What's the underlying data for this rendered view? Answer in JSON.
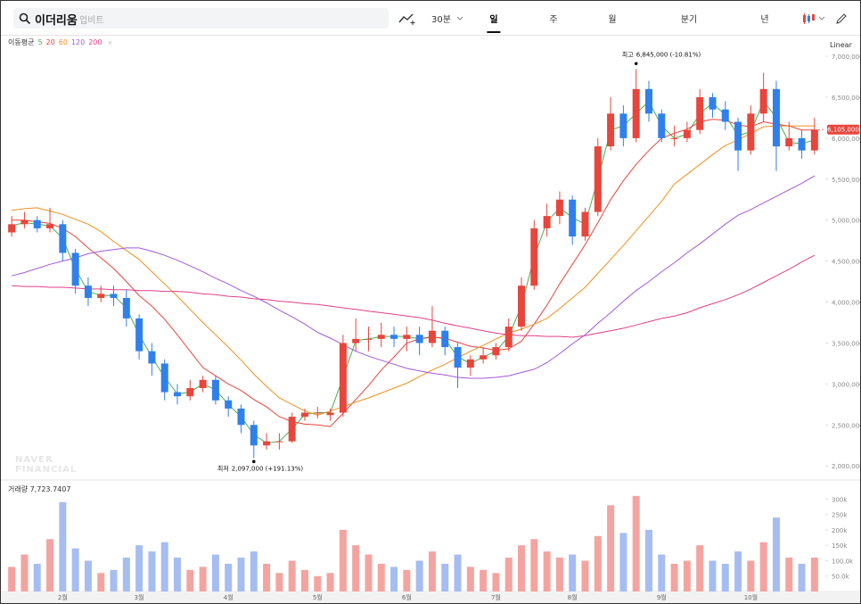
{
  "toolbar": {
    "search": "이더리움",
    "exchange": "업비트",
    "intervals": [
      "30분",
      "일",
      "주",
      "월",
      "분기",
      "년"
    ],
    "active_interval": 1,
    "scale": "Linear"
  },
  "chart_data": {
    "type": "candlestick",
    "watermark": [
      "NAVER",
      "FINANCIAL"
    ],
    "categories": [
      null,
      null,
      null,
      null,
      "2월",
      null,
      null,
      null,
      null,
      null,
      "3월",
      null,
      null,
      null,
      null,
      null,
      null,
      "4월",
      null,
      null,
      null,
      null,
      null,
      null,
      "5월",
      null,
      null,
      null,
      null,
      null,
      null,
      "6월",
      null,
      null,
      null,
      null,
      null,
      null,
      "7월",
      null,
      null,
      null,
      null,
      null,
      "8월",
      null,
      null,
      null,
      null,
      null,
      null,
      "9월",
      null,
      null,
      null,
      null,
      null,
      null,
      "10월",
      null,
      null,
      null,
      null,
      null
    ],
    "up_color": "#e8453c",
    "down_color": "#2f80ed",
    "ohlc": [
      [
        4850000,
        5050000,
        4800000,
        4950000
      ],
      [
        4950000,
        5100000,
        4900000,
        5000000
      ],
      [
        5000000,
        5050000,
        4850000,
        4900000
      ],
      [
        4900000,
        5150000,
        4850000,
        4950000
      ],
      [
        4950000,
        5000000,
        4500000,
        4600000
      ],
      [
        4600000,
        4650000,
        4100000,
        4200000
      ],
      [
        4200000,
        4300000,
        3950000,
        4050000
      ],
      [
        4050000,
        4200000,
        4000000,
        4100000
      ],
      [
        4100000,
        4200000,
        3950000,
        4050000
      ],
      [
        4050000,
        4150000,
        3700000,
        3800000
      ],
      [
        3800000,
        3850000,
        3300000,
        3400000
      ],
      [
        3400000,
        3500000,
        3100000,
        3250000
      ],
      [
        3250000,
        3300000,
        2800000,
        2900000
      ],
      [
        2900000,
        3000000,
        2750000,
        2850000
      ],
      [
        2850000,
        3050000,
        2800000,
        2950000
      ],
      [
        2950000,
        3100000,
        2900000,
        3050000
      ],
      [
        3050000,
        3100000,
        2750000,
        2800000
      ],
      [
        2800000,
        2850000,
        2600000,
        2700000
      ],
      [
        2700000,
        2750000,
        2400000,
        2500000
      ],
      [
        2500000,
        2550000,
        2097000,
        2250000
      ],
      [
        2250000,
        2400000,
        2200000,
        2300000
      ],
      [
        2300000,
        2400000,
        2200000,
        2300000
      ],
      [
        2300000,
        2650000,
        2280000,
        2600000
      ],
      [
        2600000,
        2700000,
        2550000,
        2650000
      ],
      [
        2650000,
        2720000,
        2580000,
        2650000
      ],
      [
        2620000,
        2700000,
        2550000,
        2650000
      ],
      [
        2650000,
        3600000,
        2600000,
        3500000
      ],
      [
        3500000,
        3800000,
        3400000,
        3550000
      ],
      [
        3550000,
        3700000,
        3400000,
        3550000
      ],
      [
        3550000,
        3750000,
        3450000,
        3600000
      ],
      [
        3600000,
        3700000,
        3450000,
        3550000
      ],
      [
        3550000,
        3700000,
        3400000,
        3600000
      ],
      [
        3600000,
        3700000,
        3350000,
        3500000
      ],
      [
        3500000,
        3950000,
        3450000,
        3650000
      ],
      [
        3650000,
        3700000,
        3350000,
        3450000
      ],
      [
        3450000,
        3500000,
        2950000,
        3200000
      ],
      [
        3200000,
        3350000,
        3100000,
        3300000
      ],
      [
        3300000,
        3450000,
        3250000,
        3350000
      ],
      [
        3350000,
        3500000,
        3300000,
        3450000
      ],
      [
        3450000,
        3800000,
        3400000,
        3700000
      ],
      [
        3700000,
        4300000,
        3650000,
        4200000
      ],
      [
        4200000,
        5000000,
        4150000,
        4900000
      ],
      [
        4900000,
        5200000,
        4800000,
        5050000
      ],
      [
        5050000,
        5350000,
        4950000,
        5250000
      ],
      [
        5250000,
        5300000,
        4700000,
        4800000
      ],
      [
        4800000,
        5150000,
        4750000,
        5100000
      ],
      [
        5100000,
        6000000,
        5050000,
        5900000
      ],
      [
        5900000,
        6500000,
        5850000,
        6300000
      ],
      [
        6300000,
        6400000,
        5900000,
        6000000
      ],
      [
        6000000,
        6845000,
        5950000,
        6600000
      ],
      [
        6600000,
        6700000,
        6200000,
        6300000
      ],
      [
        6300000,
        6350000,
        5950000,
        6000000
      ],
      [
        6000000,
        6150000,
        5900000,
        6000000
      ],
      [
        6000000,
        6200000,
        5950000,
        6100000
      ],
      [
        6100000,
        6600000,
        6050000,
        6500000
      ],
      [
        6500000,
        6550000,
        6250000,
        6350000
      ],
      [
        6350000,
        6450000,
        6100000,
        6200000
      ],
      [
        6200000,
        6250000,
        5600000,
        5850000
      ],
      [
        5850000,
        6400000,
        5800000,
        6300000
      ],
      [
        6300000,
        6800000,
        6200000,
        6600000
      ],
      [
        6600000,
        6700000,
        5600000,
        5900000
      ],
      [
        5900000,
        6200000,
        5850000,
        6000000
      ],
      [
        6000000,
        6100000,
        5750000,
        5850000
      ],
      [
        5850000,
        6250000,
        5800000,
        6105000
      ]
    ],
    "ma_label": "이동평균",
    "series": [
      {
        "name": "5",
        "color": "#4caf50",
        "values": [
          4930000,
          4970000,
          4950000,
          4930000,
          4780000,
          4400000,
          4130000,
          4080000,
          4080000,
          3930000,
          3600000,
          3330000,
          3080000,
          2880000,
          2900000,
          3000000,
          2930000,
          2750000,
          2600000,
          2380000,
          2280000,
          2300000,
          2450000,
          2630000,
          2650000,
          2650000,
          3080000,
          3530000,
          3550000,
          3580000,
          3580000,
          3580000,
          3550000,
          3580000,
          3550000,
          3330000,
          3250000,
          3330000,
          3400000,
          3580000,
          3950000,
          4550000,
          4980000,
          5150000,
          5030000,
          4950000,
          5500000,
          6100000,
          6150000,
          6300000,
          6450000,
          6150000,
          6000000,
          6050000,
          6300000,
          6430000,
          6280000,
          6030000,
          6080000,
          6450000,
          6250000,
          5950000,
          5930000,
          5980000
        ]
      },
      {
        "name": "20",
        "color": "#e8453c",
        "values": [
          5000000,
          5000000,
          4980000,
          4960000,
          4900000,
          4800000,
          4660000,
          4540000,
          4410000,
          4250000,
          4080000,
          3950000,
          3790000,
          3600000,
          3400000,
          3200000,
          3100000,
          3000000,
          2920000,
          2810000,
          2720000,
          2600000,
          2540000,
          2510000,
          2500000,
          2480000,
          2640000,
          2810000,
          2980000,
          3170000,
          3330000,
          3500000,
          3550000,
          3570000,
          3560000,
          3510000,
          3460000,
          3440000,
          3410000,
          3430000,
          3520000,
          3730000,
          3960000,
          4220000,
          4460000,
          4700000,
          4970000,
          5250000,
          5480000,
          5680000,
          5850000,
          6000000,
          6060000,
          6110000,
          6200000,
          6230000,
          6220000,
          6160000,
          6140000,
          6200000,
          6170000,
          6150000,
          6100000,
          6100000
        ]
      },
      {
        "name": "60",
        "color": "#f0901e",
        "values": [
          5120000,
          5140000,
          5150000,
          5110000,
          5070000,
          5010000,
          4950000,
          4860000,
          4740000,
          4630000,
          4520000,
          4370000,
          4220000,
          4070000,
          3910000,
          3750000,
          3600000,
          3450000,
          3290000,
          3120000,
          2970000,
          2830000,
          2750000,
          2670000,
          2620000,
          2670000,
          2720000,
          2780000,
          2830000,
          2890000,
          2950000,
          3010000,
          3090000,
          3170000,
          3240000,
          3320000,
          3400000,
          3470000,
          3550000,
          3620000,
          3670000,
          3730000,
          3800000,
          3920000,
          4050000,
          4180000,
          4350000,
          4520000,
          4690000,
          4870000,
          5050000,
          5230000,
          5440000,
          5560000,
          5680000,
          5800000,
          5910000,
          5980000,
          6060000,
          6140000,
          6150000,
          6150000,
          6150000,
          6150000
        ]
      },
      {
        "name": "120",
        "color": "#a25ad9",
        "values": [
          4320000,
          4360000,
          4410000,
          4460000,
          4500000,
          4540000,
          4590000,
          4620000,
          4640000,
          4660000,
          4660000,
          4620000,
          4570000,
          4510000,
          4440000,
          4370000,
          4290000,
          4220000,
          4140000,
          4070000,
          3990000,
          3900000,
          3820000,
          3730000,
          3630000,
          3560000,
          3480000,
          3400000,
          3340000,
          3290000,
          3240000,
          3190000,
          3160000,
          3130000,
          3110000,
          3080000,
          3070000,
          3070000,
          3080000,
          3100000,
          3140000,
          3180000,
          3260000,
          3370000,
          3490000,
          3600000,
          3740000,
          3870000,
          4010000,
          4140000,
          4250000,
          4370000,
          4480000,
          4600000,
          4710000,
          4830000,
          4950000,
          5060000,
          5130000,
          5210000,
          5290000,
          5370000,
          5450000,
          5540000
        ]
      },
      {
        "name": "200",
        "color": "#e0408a",
        "values": [
          4200000,
          4190000,
          4190000,
          4180000,
          4180000,
          4170000,
          4160000,
          4160000,
          4150000,
          4150000,
          4140000,
          4140000,
          4130000,
          4130000,
          4120000,
          4100000,
          4090000,
          4070000,
          4060000,
          4040000,
          4030000,
          4010000,
          4000000,
          3980000,
          3970000,
          3950000,
          3930000,
          3910000,
          3890000,
          3870000,
          3850000,
          3830000,
          3810000,
          3780000,
          3740000,
          3710000,
          3680000,
          3650000,
          3620000,
          3600000,
          3590000,
          3590000,
          3580000,
          3580000,
          3570000,
          3590000,
          3620000,
          3650000,
          3680000,
          3720000,
          3760000,
          3800000,
          3830000,
          3870000,
          3930000,
          3980000,
          4030000,
          4090000,
          4160000,
          4240000,
          4320000,
          4400000,
          4490000,
          4570000
        ]
      }
    ],
    "ylim": [
      1850000,
      7240000
    ],
    "yticks": [
      {
        "value": 2000000,
        "label": "2,000,000"
      },
      {
        "value": 2500000,
        "label": "2,500,000"
      },
      {
        "value": 3000000,
        "label": "3,000,000"
      },
      {
        "value": 3500000,
        "label": "3,500,000"
      },
      {
        "value": 4000000,
        "label": "4,000,000"
      },
      {
        "value": 4500000,
        "label": "4,500,000"
      },
      {
        "value": 5000000,
        "label": "5,000,000"
      },
      {
        "value": 5500000,
        "label": "5,500,000"
      },
      {
        "value": 6000000,
        "label": "6,000,000"
      },
      {
        "value": 6500000,
        "label": "6,500,000"
      },
      {
        "value": 7000000,
        "label": "7,000,000"
      }
    ],
    "last_price_label": "6,105,000",
    "high_annotation": {
      "label": "최고",
      "text": "6,845,000 (-10.81%)"
    },
    "low_annotation": {
      "label": "최저",
      "text": "2,097,000 (+191.13%)"
    },
    "volume": {
      "label": "거래량 7,723.7407",
      "up_color": "#f4a4a0",
      "down_color": "#a6bdf2",
      "values": [
        80000,
        120000,
        90000,
        170000,
        290000,
        140000,
        100000,
        60000,
        70000,
        110000,
        150000,
        130000,
        160000,
        110000,
        70000,
        80000,
        120000,
        90000,
        110000,
        130000,
        90000,
        60000,
        100000,
        70000,
        50000,
        60000,
        200000,
        150000,
        120000,
        90000,
        80000,
        70000,
        100000,
        130000,
        90000,
        120000,
        80000,
        70000,
        60000,
        110000,
        150000,
        170000,
        130000,
        110000,
        120000,
        100000,
        180000,
        280000,
        190000,
        310000,
        200000,
        120000,
        90000,
        100000,
        150000,
        100000,
        90000,
        130000,
        100000,
        160000,
        240000,
        110000,
        90000,
        110000
      ],
      "ylim": [
        0,
        330000
      ],
      "yticks": [
        {
          "value": 50000,
          "label": "50.0k"
        },
        {
          "value": 100000,
          "label": "100.0k"
        },
        {
          "value": 150000,
          "label": "150k"
        },
        {
          "value": 200000,
          "label": "200k"
        },
        {
          "value": 250000,
          "label": "250k"
        },
        {
          "value": 300000,
          "label": "300k"
        }
      ]
    }
  }
}
